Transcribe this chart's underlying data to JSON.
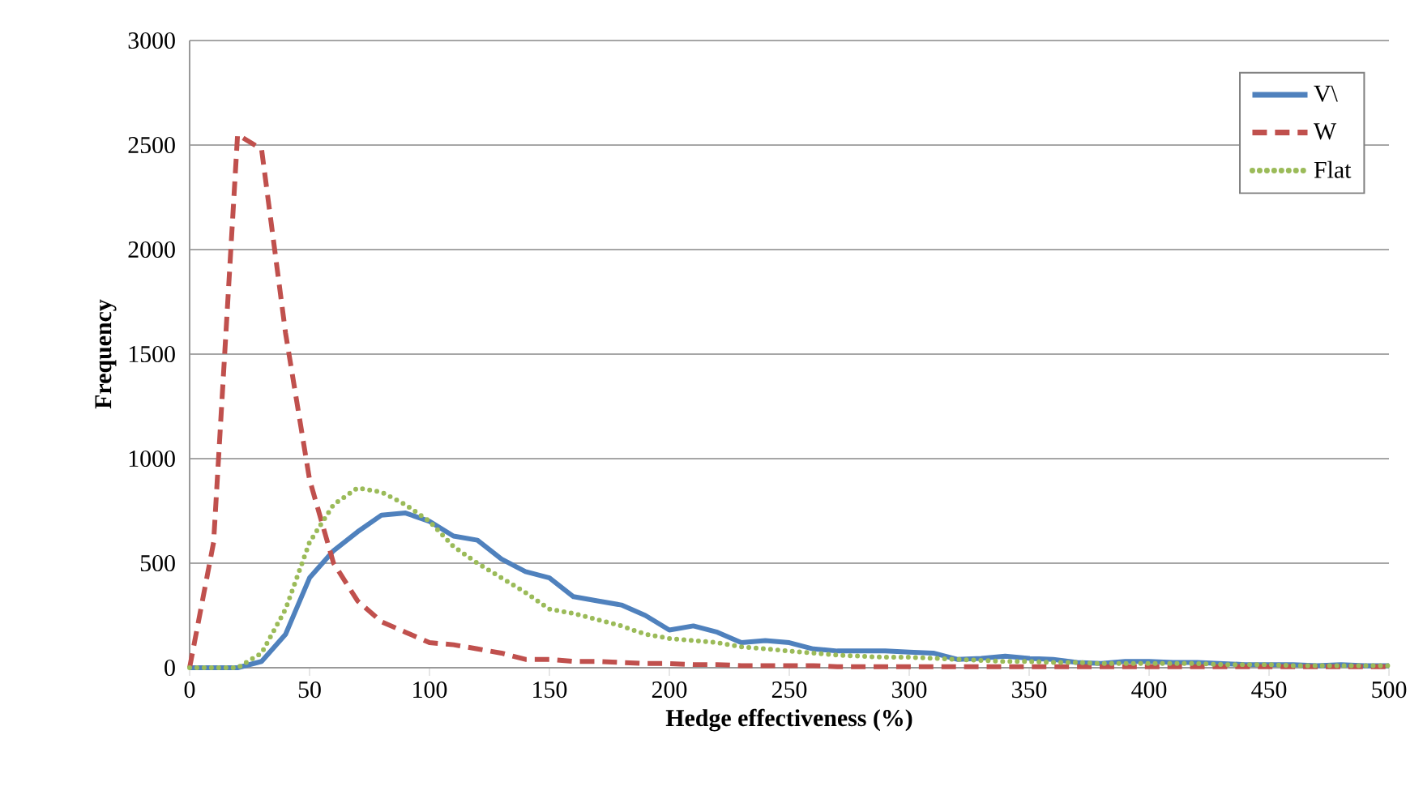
{
  "chart_data": {
    "type": "line",
    "xlabel": "Hedge effectiveness (%)",
    "ylabel": "Frequency",
    "x": [
      0,
      10,
      20,
      30,
      40,
      50,
      60,
      70,
      80,
      90,
      100,
      110,
      120,
      130,
      140,
      150,
      160,
      170,
      180,
      190,
      200,
      210,
      220,
      230,
      240,
      250,
      260,
      270,
      280,
      290,
      300,
      310,
      320,
      330,
      340,
      350,
      360,
      370,
      380,
      390,
      400,
      410,
      420,
      430,
      440,
      450,
      460,
      470,
      480,
      490,
      500
    ],
    "series": [
      {
        "name": "V\\",
        "color": "#4f81bd",
        "line_style": "solid",
        "values": [
          0,
          0,
          0,
          30,
          160,
          430,
          560,
          650,
          730,
          740,
          700,
          630,
          610,
          520,
          460,
          430,
          340,
          320,
          300,
          250,
          180,
          200,
          170,
          120,
          130,
          120,
          90,
          80,
          80,
          80,
          75,
          70,
          40,
          45,
          55,
          45,
          40,
          25,
          20,
          30,
          30,
          25,
          25,
          20,
          15,
          15,
          15,
          10,
          15,
          10,
          10
        ]
      },
      {
        "name": "W",
        "color": "#c0504d",
        "line_style": "dashed",
        "values": [
          0,
          600,
          2550,
          2480,
          1600,
          900,
          500,
          320,
          220,
          170,
          120,
          110,
          90,
          70,
          40,
          40,
          30,
          30,
          25,
          20,
          20,
          15,
          15,
          10,
          10,
          10,
          10,
          5,
          5,
          5,
          5,
          5,
          5,
          5,
          5,
          5,
          5,
          5,
          5,
          5,
          5,
          5,
          5,
          5,
          5,
          5,
          5,
          5,
          5,
          5,
          5
        ]
      },
      {
        "name": "Flat",
        "color": "#9bbb59",
        "line_style": "dotted",
        "values": [
          0,
          0,
          0,
          70,
          280,
          600,
          780,
          860,
          840,
          780,
          700,
          580,
          500,
          430,
          360,
          280,
          260,
          230,
          200,
          160,
          140,
          130,
          120,
          100,
          90,
          80,
          70,
          60,
          55,
          50,
          50,
          45,
          40,
          35,
          30,
          30,
          25,
          25,
          20,
          20,
          20,
          20,
          20,
          15,
          15,
          15,
          10,
          10,
          10,
          10,
          10
        ]
      }
    ],
    "xlim": [
      0,
      500
    ],
    "xticks": [
      0,
      50,
      100,
      150,
      200,
      250,
      300,
      350,
      400,
      450,
      500
    ],
    "ylim": [
      0,
      3000
    ],
    "yticks": [
      0,
      500,
      1000,
      1500,
      2000,
      2500,
      3000
    ],
    "grid": "y",
    "legend": "top right",
    "marker": "none"
  }
}
